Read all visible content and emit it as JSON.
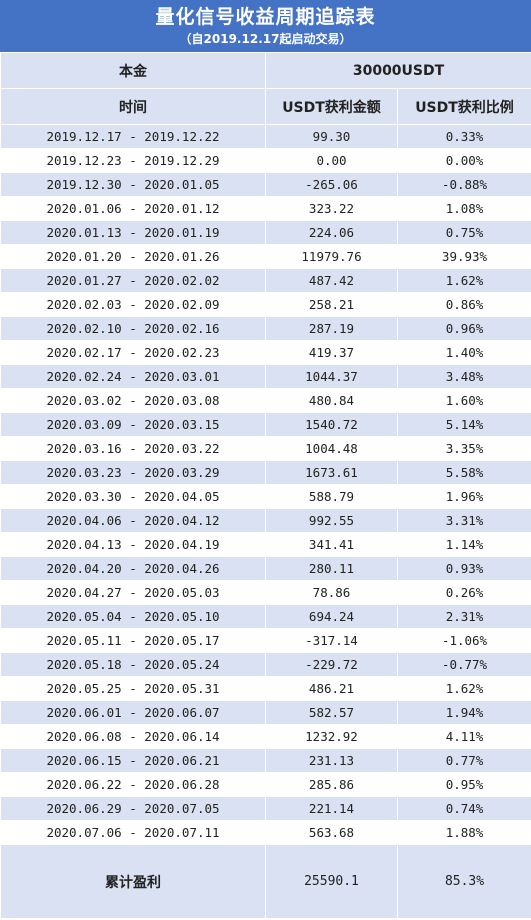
{
  "title": "量化信号收益周期追踪表",
  "subtitle": "（自2019.12.17起启动交易）",
  "principal_label": "本金",
  "principal_value": "30000USDT",
  "columns": [
    "时间",
    "USDT获利金额",
    "USDT获利比例"
  ],
  "rows": [
    {
      "period": "2019.12.17 - 2019.12.22",
      "amount": "99.30",
      "ratio": "0.33%"
    },
    {
      "period": "2019.12.23 - 2019.12.29",
      "amount": "0.00",
      "ratio": "0.00%"
    },
    {
      "period": "2019.12.30 - 2020.01.05",
      "amount": "-265.06",
      "ratio": "-0.88%"
    },
    {
      "period": "2020.01.06 - 2020.01.12",
      "amount": "323.22",
      "ratio": "1.08%"
    },
    {
      "period": "2020.01.13 - 2020.01.19",
      "amount": "224.06",
      "ratio": "0.75%"
    },
    {
      "period": "2020.01.20 - 2020.01.26",
      "amount": "11979.76",
      "ratio": "39.93%"
    },
    {
      "period": "2020.01.27 - 2020.02.02",
      "amount": "487.42",
      "ratio": "1.62%"
    },
    {
      "period": "2020.02.03 - 2020.02.09",
      "amount": "258.21",
      "ratio": "0.86%"
    },
    {
      "period": "2020.02.10 - 2020.02.16",
      "amount": "287.19",
      "ratio": "0.96%"
    },
    {
      "period": "2020.02.17 - 2020.02.23",
      "amount": "419.37",
      "ratio": "1.40%"
    },
    {
      "period": "2020.02.24 - 2020.03.01",
      "amount": "1044.37",
      "ratio": "3.48%"
    },
    {
      "period": "2020.03.02 - 2020.03.08",
      "amount": "480.84",
      "ratio": "1.60%"
    },
    {
      "period": "2020.03.09 - 2020.03.15",
      "amount": "1540.72",
      "ratio": "5.14%"
    },
    {
      "period": "2020.03.16 - 2020.03.22",
      "amount": "1004.48",
      "ratio": "3.35%"
    },
    {
      "period": "2020.03.23 - 2020.03.29",
      "amount": "1673.61",
      "ratio": "5.58%"
    },
    {
      "period": "2020.03.30 - 2020.04.05",
      "amount": "588.79",
      "ratio": "1.96%"
    },
    {
      "period": "2020.04.06 - 2020.04.12",
      "amount": "992.55",
      "ratio": "3.31%"
    },
    {
      "period": "2020.04.13 - 2020.04.19",
      "amount": "341.41",
      "ratio": "1.14%"
    },
    {
      "period": "2020.04.20 - 2020.04.26",
      "amount": "280.11",
      "ratio": "0.93%"
    },
    {
      "period": "2020.04.27 - 2020.05.03",
      "amount": "78.86",
      "ratio": "0.26%"
    },
    {
      "period": "2020.05.04 - 2020.05.10",
      "amount": "694.24",
      "ratio": "2.31%"
    },
    {
      "period": "2020.05.11 - 2020.05.17",
      "amount": "-317.14",
      "ratio": "-1.06%"
    },
    {
      "period": "2020.05.18 - 2020.05.24",
      "amount": "-229.72",
      "ratio": "-0.77%"
    },
    {
      "period": "2020.05.25 - 2020.05.31",
      "amount": "486.21",
      "ratio": "1.62%"
    },
    {
      "period": "2020.06.01 - 2020.06.07",
      "amount": "582.57",
      "ratio": "1.94%"
    },
    {
      "period": "2020.06.08 - 2020.06.14",
      "amount": "1232.92",
      "ratio": "4.11%"
    },
    {
      "period": "2020.06.15 - 2020.06.21",
      "amount": "231.13",
      "ratio": "0.77%"
    },
    {
      "period": "2020.06.22 - 2020.06.28",
      "amount": "285.86",
      "ratio": "0.95%"
    },
    {
      "period": "2020.06.29 - 2020.07.05",
      "amount": "221.14",
      "ratio": "0.74%"
    },
    {
      "period": "2020.07.06 - 2020.07.11",
      "amount": "563.68",
      "ratio": "1.88%"
    }
  ],
  "total": {
    "label": "累计盈利",
    "amount": "25590.1",
    "ratio": "85.3%"
  },
  "colors": {
    "header_bg": "#4472c4",
    "band_bg": "#d9e1f2",
    "text": "#222222"
  }
}
